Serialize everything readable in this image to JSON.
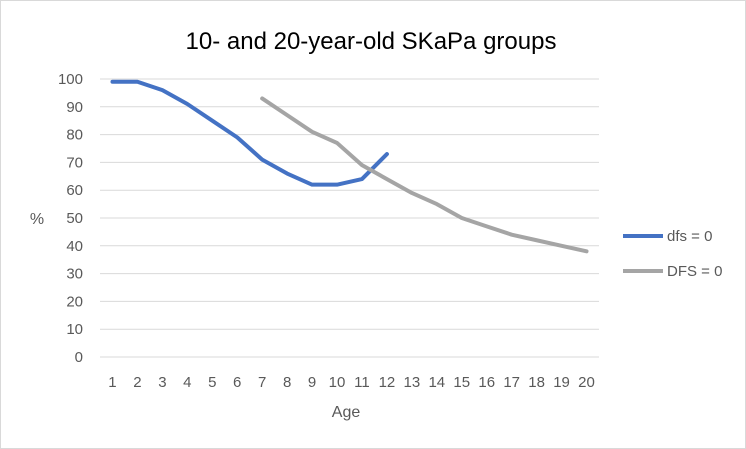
{
  "chart_data": {
    "type": "line",
    "title": "10- and 20-year-old SKaPa groups",
    "xlabel": "Age",
    "ylabel": "%",
    "categories": [
      "1",
      "2",
      "3",
      "4",
      "5",
      "6",
      "7",
      "8",
      "9",
      "10",
      "11",
      "12",
      "13",
      "14",
      "15",
      "16",
      "17",
      "18",
      "19",
      "20"
    ],
    "ylim": [
      0,
      100
    ],
    "yticks": [
      "0",
      "10",
      "20",
      "30",
      "40",
      "50",
      "60",
      "70",
      "80",
      "90",
      "100"
    ],
    "grid": true,
    "legend_position": "right",
    "series": [
      {
        "name": "dfs = 0",
        "color": "#4472c4",
        "values": [
          99,
          99,
          96,
          91,
          85,
          79,
          71,
          66,
          62,
          62,
          64,
          73,
          null,
          null,
          null,
          null,
          null,
          null,
          null,
          null
        ]
      },
      {
        "name": "DFS = 0",
        "color": "#a5a5a5",
        "values": [
          null,
          null,
          null,
          null,
          null,
          null,
          93,
          87,
          81,
          77,
          69,
          64,
          59,
          55,
          50,
          47,
          44,
          42,
          40,
          38
        ]
      }
    ]
  }
}
